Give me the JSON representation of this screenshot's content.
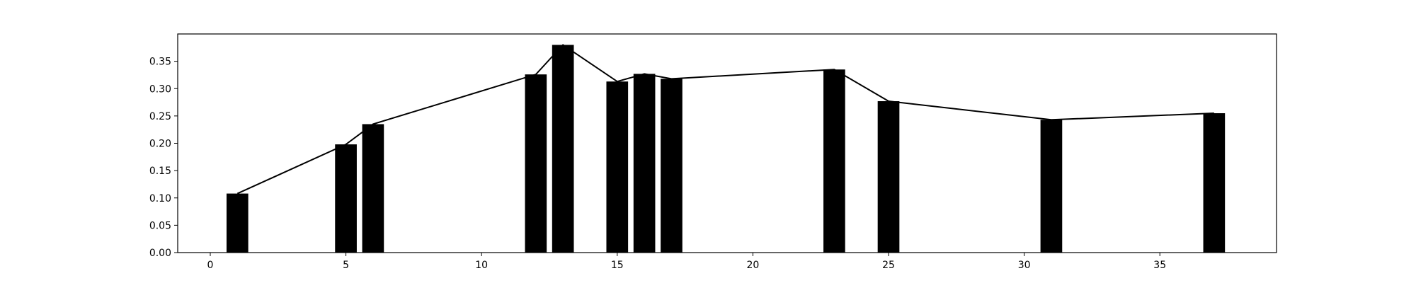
{
  "chart_data": {
    "type": "bar",
    "title": "",
    "xlabel": "",
    "ylabel": "",
    "xlim": [
      -1.2,
      39.3
    ],
    "ylim": [
      0,
      0.4
    ],
    "x_ticks": [
      0,
      5,
      10,
      15,
      20,
      25,
      30,
      35
    ],
    "y_ticks": [
      0.0,
      0.05,
      0.1,
      0.15,
      0.2,
      0.25,
      0.3,
      0.35
    ],
    "x_tick_labels": [
      "0",
      "5",
      "10",
      "15",
      "20",
      "25",
      "30",
      "35"
    ],
    "y_tick_labels": [
      "0.00",
      "0.05",
      "0.10",
      "0.15",
      "0.20",
      "0.25",
      "0.30",
      "0.35"
    ],
    "bar_width": 0.8,
    "x": [
      1,
      5,
      6,
      12,
      13,
      15,
      16,
      17,
      23,
      25,
      31,
      37
    ],
    "values": [
      0.108,
      0.198,
      0.235,
      0.326,
      0.38,
      0.313,
      0.327,
      0.318,
      0.335,
      0.277,
      0.243,
      0.255
    ],
    "overlay_line": true,
    "grid": false,
    "legend": "none",
    "colors": {
      "bar": "#000000",
      "line": "#000000"
    }
  }
}
